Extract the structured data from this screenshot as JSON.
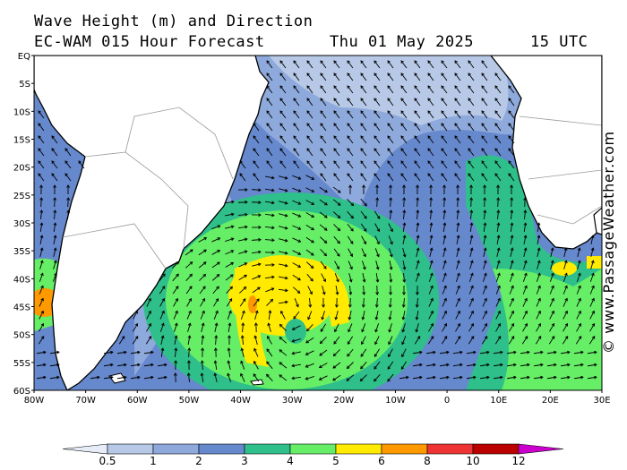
{
  "header": {
    "title": "Wave Height (m) and Direction",
    "model": "EC-WAM 015 Hour Forecast",
    "date": "Thu 01 May 2025",
    "time": "15 UTC"
  },
  "watermark": "© www.PassageWeather.com",
  "map": {
    "region": "South Atlantic",
    "lon_range": [
      -80,
      30
    ],
    "lat_range": [
      -60,
      0
    ],
    "lat_ticks": [
      "EQ",
      "5S",
      "10S",
      "15S",
      "20S",
      "25S",
      "30S",
      "35S",
      "40S",
      "45S",
      "50S",
      "55S",
      "60S"
    ],
    "lon_ticks": [
      "80W",
      "70W",
      "60W",
      "50W",
      "40W",
      "30W",
      "20W",
      "10W",
      "0",
      "10E",
      "20E",
      "30E"
    ],
    "land_color": "#ffffff",
    "coast_color": "#000000",
    "border_color": "#999999"
  },
  "legend": {
    "labels": [
      "0.5",
      "1",
      "2",
      "3",
      "4",
      "5",
      "6",
      "8",
      "10",
      "12"
    ],
    "colors": [
      "#e6ecf8",
      "#b7c9e7",
      "#8ea9db",
      "#6688cc",
      "#2fbf8a",
      "#66ee66",
      "#ffea00",
      "#ff9900",
      "#ee3333",
      "#bb0000",
      "#cc00cc"
    ]
  }
}
